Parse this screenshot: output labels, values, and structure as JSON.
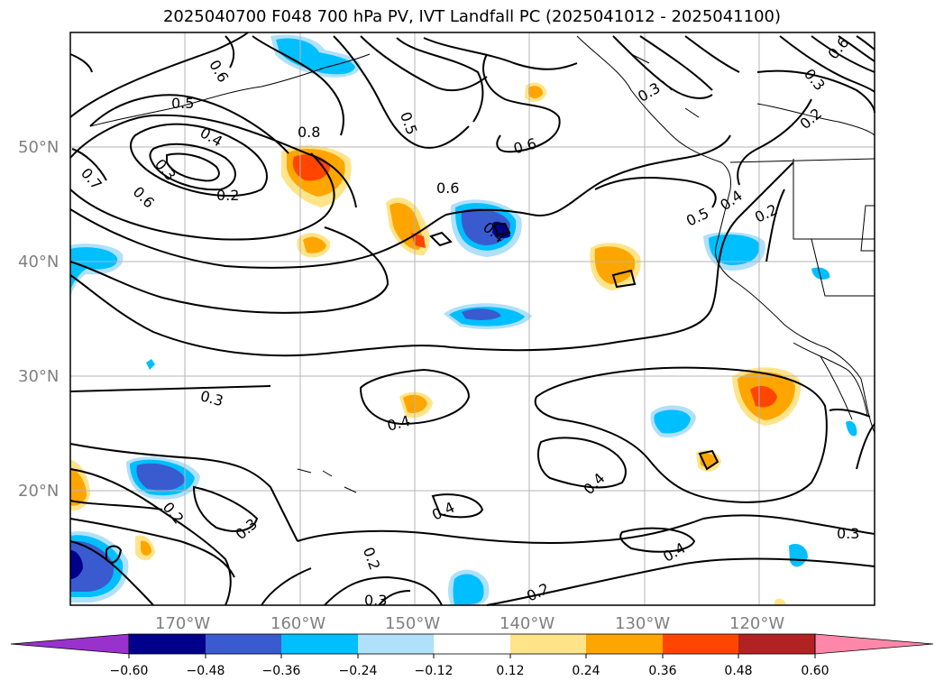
{
  "title": "2025040700 F048 700 hPa PV, IVT Landfall PC (2025041012 - 2025041100)",
  "map": {
    "lon_range": [
      -180,
      -110
    ],
    "lat_range": [
      10,
      60
    ],
    "gridlines": true,
    "lat_labels": [
      "50°N",
      "40°N",
      "30°N",
      "20°N"
    ],
    "lon_labels": [
      "170°W",
      "160°W",
      "150°W",
      "140°W",
      "130°W",
      "120°W"
    ],
    "contour_labels": [
      "0.6",
      "0.5",
      "0.4",
      "0.3",
      "0.2",
      "0.6",
      "0.7",
      "0.8",
      "0.5",
      "0.6",
      "0.6",
      "0.4",
      "0.3",
      "0.2",
      "0.5",
      "0.4",
      "0.2",
      "0.3",
      "0.4",
      "0.2",
      "0.3",
      "0.4",
      "0.4",
      "0.4",
      "0.3",
      "0.2",
      "0.3",
      "0.2",
      "0.3",
      "0.6"
    ]
  },
  "colorbar": {
    "ticks": [
      "−0.60",
      "−0.48",
      "−0.36",
      "−0.24",
      "−0.12",
      "0.12",
      "0.24",
      "0.36",
      "0.48",
      "0.60"
    ],
    "colors": [
      "#9932cc",
      "#00008b",
      "#3a5bd0",
      "#00bfff",
      "#b0e0fa",
      "#ffffff",
      "#ffe48a",
      "#ffa500",
      "#ff4500",
      "#b22222",
      "#ff88aa"
    ],
    "extend": "both"
  }
}
